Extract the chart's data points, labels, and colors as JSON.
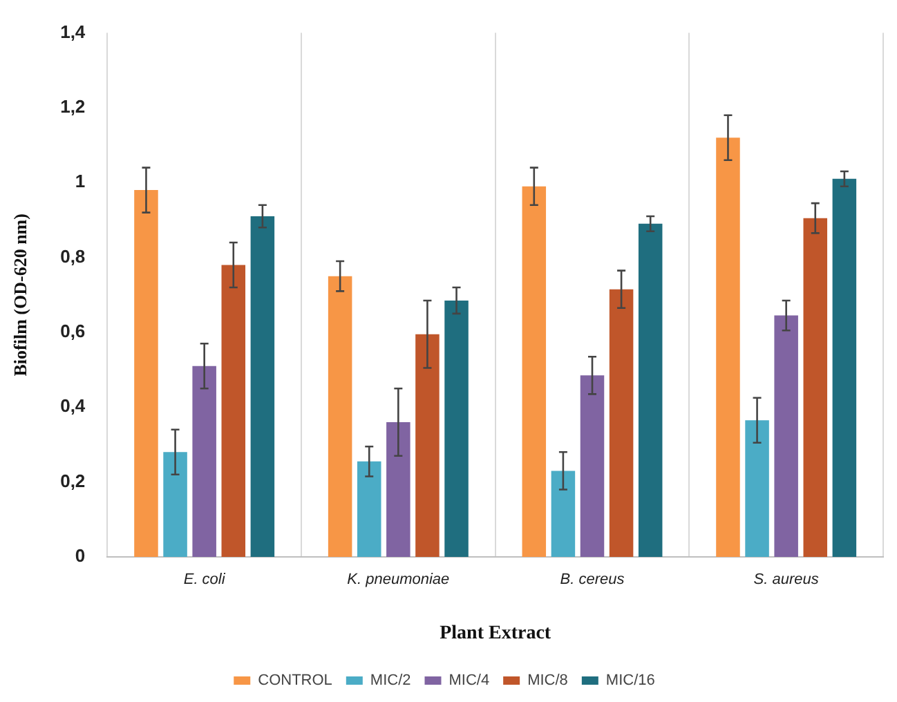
{
  "chart_data": {
    "type": "bar",
    "xlabel": "Plant Extract",
    "ylabel": "Biofilm (OD-620 nm)",
    "categories": [
      "E. coli",
      "K. pneumoniae",
      "B. cereus",
      "S. aureus"
    ],
    "series": [
      {
        "name": "CONTROL",
        "color": "#f79646",
        "values": [
          0.98,
          0.75,
          0.99,
          1.12
        ],
        "errors": [
          0.06,
          0.04,
          0.05,
          0.06
        ]
      },
      {
        "name": "MIC/2",
        "color": "#4bacc6",
        "values": [
          0.28,
          0.255,
          0.23,
          0.365
        ],
        "errors": [
          0.06,
          0.04,
          0.05,
          0.06
        ]
      },
      {
        "name": "MIC/4",
        "color": "#8064a2",
        "values": [
          0.51,
          0.36,
          0.485,
          0.645
        ],
        "errors": [
          0.06,
          0.09,
          0.05,
          0.04
        ]
      },
      {
        "name": "MIC/8",
        "color": "#c0562a",
        "values": [
          0.78,
          0.595,
          0.715,
          0.905
        ],
        "errors": [
          0.06,
          0.09,
          0.05,
          0.04
        ]
      },
      {
        "name": "MIC/16",
        "color": "#1f6e7f",
        "values": [
          0.91,
          0.685,
          0.89,
          1.01
        ],
        "errors": [
          0.03,
          0.035,
          0.02,
          0.02
        ]
      }
    ],
    "ylim": [
      0,
      1.4
    ],
    "yticks": [
      0,
      {
        "value": 0.2,
        "label": "0,2"
      },
      {
        "value": 0.4,
        "label": "0,4"
      },
      {
        "value": 0.6,
        "label": "0,6"
      },
      {
        "value": 0.8,
        "label": "0,8"
      },
      1,
      {
        "value": 1.2,
        "label": "1,2"
      },
      {
        "value": 1.4,
        "label": "1,4"
      }
    ],
    "grid": "x",
    "legend": "bottom"
  }
}
